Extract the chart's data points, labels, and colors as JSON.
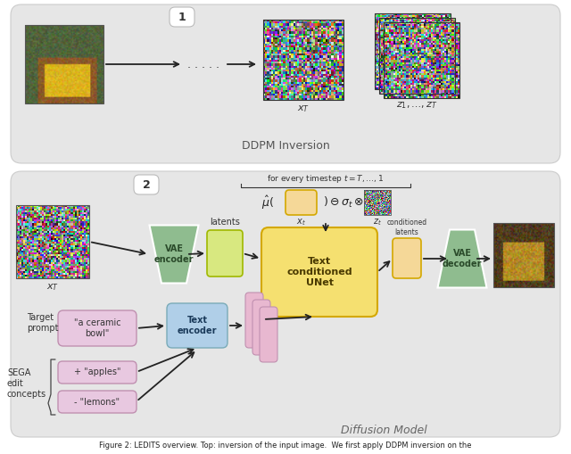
{
  "bg_color": "#e8e8e8",
  "section1_color": "#e0e0e0",
  "section2_color": "#e0e0e0",
  "vae_enc_color": "#8fbc8f",
  "vae_dec_color": "#8fbc8f",
  "text_enc_color": "#b0cfe8",
  "unet_color": "#f5e070",
  "unet_border": "#d4a800",
  "latent_color": "#d8e880",
  "latent_border": "#a0b800",
  "cond_latent_color": "#f5d898",
  "cond_latent_border": "#d4a800",
  "prompt_box_color": "#e8c8e0",
  "prompt_box_border": "#c090b0",
  "emb_color": "#e8b8d0",
  "emb_border": "#c090b0",
  "arrow_color": "#222222",
  "badge_color": "#ffffff",
  "badge_border": "#aaaaaa",
  "section_border": "#cccccc",
  "text_color_dark": "#333333",
  "text_color_vae": "#2a4a2a",
  "text_color_unet": "#4a3a00",
  "text_color_tenc": "#1a3a5a",
  "title1": "DDPM Inversion",
  "title2": "Diffusion Model",
  "caption": "TS overview. Top: inversion of the input image.  We first apply DDPM inversion on the",
  "lbl_1": "1",
  "lbl_2": "2",
  "lbl_xT_top": "$x_T$",
  "lbl_z1zT": "$z_1,\\ldots,z_T$",
  "lbl_xT_bot": "$x_T$",
  "lbl_xt_form": "$x_t$",
  "lbl_zt_form": "$z_t$",
  "lbl_latents": "latents",
  "lbl_cond_latents": "conditioned\nlatents",
  "lbl_vae_enc": "VAE\nencoder",
  "lbl_vae_dec": "VAE\ndecoder",
  "lbl_text_enc": "Text\nencoder",
  "lbl_unet": "Text\nconditioned\nUNet",
  "lbl_target_prompt": "Target\nprompt",
  "lbl_sega": "SEGA\nedit\nconcepts",
  "lbl_prompt": "\"a ceramic\nbowl\"",
  "lbl_apples": "+ \"apples\"",
  "lbl_lemons": "- \"lemons\"",
  "lbl_timestep": "for every timestep $t = T,\\ldots,1$",
  "formula_left": "$\\hat{\\mu}($",
  "formula_right": "$)\\ominus\\sigma_t\\otimes$"
}
